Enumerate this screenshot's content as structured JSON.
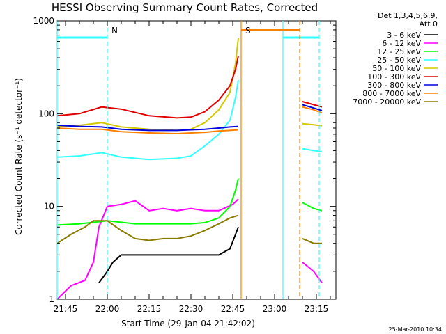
{
  "chart_data": {
    "type": "line",
    "title": "HESSI Observing Summary Count Rates, Corrected",
    "xlabel": "Start Time (29-Jan-04 21:42:02)",
    "ylabel": "Corrected Count Rate (s⁻¹ detector⁻¹)",
    "y_scale": "log",
    "ylim": [
      1,
      1000
    ],
    "x_time_range": [
      "21:42",
      "23:22"
    ],
    "x_ticks": [
      "21:45",
      "22:00",
      "22:15",
      "22:30",
      "22:45",
      "23:00",
      "23:15"
    ],
    "y_ticks": [
      "1",
      "10",
      "100",
      "1000"
    ],
    "grid": false,
    "legend_position": "right",
    "legend_header": [
      "Det 1,3,4,5,6,9,",
      "Att 0"
    ],
    "timestamp": "25-Mar-2010 10:34",
    "colors": {
      "3 - 6 keV": "#000000",
      "6 - 12 keV": "#ff00ff",
      "12 - 25 keV": "#00ff00",
      "25 - 50 keV": "#33ffff",
      "50 - 100 keV": "#d4c800",
      "100 - 300 keV": "#e00000",
      "300 - 800 keV": "#0000e0",
      "800 - 7000 keV": "#ff8000",
      "7000 - 20000 keV": "#8b7a00",
      "night_bar": "#33ffff",
      "saa_bar": "#ff8000"
    },
    "annotations": [
      {
        "label": "N",
        "color": "#33ffff",
        "time": "22:00"
      },
      {
        "label": "S",
        "color": "#ff8000",
        "time": "22:48"
      }
    ],
    "spacecraft_flags": {
      "night": [
        [
          "21:42",
          "22:00"
        ],
        [
          "23:03",
          "23:16"
        ]
      ],
      "saa": [
        [
          "22:48",
          "23:09"
        ]
      ],
      "night_level": 660,
      "saa_level": 800
    },
    "series": [
      {
        "name": "3 - 6 keV",
        "points": [
          [
            "21:57",
            1.5
          ],
          [
            "22:00",
            2.0
          ],
          [
            "22:02",
            2.5
          ],
          [
            "22:05",
            3.0
          ],
          [
            "22:10",
            3.0
          ],
          [
            "22:15",
            3.0
          ],
          [
            "22:20",
            3.0
          ],
          [
            "22:25",
            3.0
          ],
          [
            "22:30",
            3.0
          ],
          [
            "22:35",
            3.0
          ],
          [
            "22:40",
            3.0
          ],
          [
            "22:44",
            3.5
          ],
          [
            "22:46",
            5.0
          ],
          [
            "22:47",
            6.0
          ]
        ]
      },
      {
        "name": "6 - 12 keV",
        "points": [
          [
            "21:42",
            1.0
          ],
          [
            "21:47",
            1.4
          ],
          [
            "21:52",
            1.6
          ],
          [
            "21:55",
            2.5
          ],
          [
            "21:57",
            6.0
          ],
          [
            "22:00",
            10.0
          ],
          [
            "22:05",
            10.5
          ],
          [
            "22:10",
            11.5
          ],
          [
            "22:15",
            9.0
          ],
          [
            "22:20",
            9.5
          ],
          [
            "22:25",
            9.0
          ],
          [
            "22:30",
            9.5
          ],
          [
            "22:35",
            9.0
          ],
          [
            "22:40",
            9.0
          ],
          [
            "22:45",
            10.5
          ],
          [
            "22:47",
            12.0
          ]
        ]
      },
      {
        "name": "12 - 25 keV",
        "points": [
          [
            "21:42",
            6.3
          ],
          [
            "21:50",
            6.5
          ],
          [
            "22:00",
            7.0
          ],
          [
            "22:10",
            6.5
          ],
          [
            "22:20",
            6.5
          ],
          [
            "22:30",
            6.5
          ],
          [
            "22:35",
            6.7
          ],
          [
            "22:40",
            7.5
          ],
          [
            "22:44",
            10.0
          ],
          [
            "22:46",
            15.0
          ],
          [
            "22:47",
            20.0
          ]
        ]
      },
      {
        "name": "25 - 50 keV",
        "points": [
          [
            "21:42",
            34
          ],
          [
            "21:50",
            35
          ],
          [
            "21:58",
            38
          ],
          [
            "22:05",
            34
          ],
          [
            "22:15",
            32
          ],
          [
            "22:25",
            33
          ],
          [
            "22:30",
            35
          ],
          [
            "22:35",
            45
          ],
          [
            "22:40",
            60
          ],
          [
            "22:44",
            85
          ],
          [
            "22:46",
            150
          ],
          [
            "22:47",
            230
          ]
        ]
      },
      {
        "name": "50 - 100 keV",
        "points": [
          [
            "21:42",
            73
          ],
          [
            "21:50",
            75
          ],
          [
            "21:58",
            80
          ],
          [
            "22:05",
            72
          ],
          [
            "22:15",
            68
          ],
          [
            "22:25",
            66
          ],
          [
            "22:30",
            68
          ],
          [
            "22:35",
            80
          ],
          [
            "22:40",
            110
          ],
          [
            "22:44",
            170
          ],
          [
            "22:46",
            350
          ],
          [
            "22:47",
            650
          ]
        ]
      },
      {
        "name": "100 - 300 keV",
        "points": [
          [
            "21:42",
            95
          ],
          [
            "21:50",
            100
          ],
          [
            "21:58",
            118
          ],
          [
            "22:05",
            112
          ],
          [
            "22:15",
            95
          ],
          [
            "22:25",
            90
          ],
          [
            "22:30",
            92
          ],
          [
            "22:35",
            105
          ],
          [
            "22:40",
            140
          ],
          [
            "22:44",
            200
          ],
          [
            "22:46",
            300
          ],
          [
            "22:47",
            420
          ]
        ]
      },
      {
        "name": "300 - 800 keV",
        "points": [
          [
            "21:42",
            75
          ],
          [
            "21:50",
            73
          ],
          [
            "21:58",
            72
          ],
          [
            "22:05",
            68
          ],
          [
            "22:15",
            66
          ],
          [
            "22:25",
            66
          ],
          [
            "22:30",
            67
          ],
          [
            "22:35",
            68
          ],
          [
            "22:40",
            70
          ],
          [
            "22:44",
            72
          ],
          [
            "22:47",
            73
          ]
        ]
      },
      {
        "name": "800 - 7000 keV",
        "points": [
          [
            "21:42",
            70
          ],
          [
            "21:50",
            68
          ],
          [
            "21:58",
            68
          ],
          [
            "22:05",
            64
          ],
          [
            "22:15",
            62
          ],
          [
            "22:25",
            61
          ],
          [
            "22:30",
            62
          ],
          [
            "22:35",
            63
          ],
          [
            "22:40",
            65
          ],
          [
            "22:44",
            66
          ],
          [
            "22:47",
            67
          ]
        ]
      },
      {
        "name": "7000 - 20000 keV",
        "points": [
          [
            "21:42",
            4.0
          ],
          [
            "21:47",
            5.0
          ],
          [
            "21:52",
            6.0
          ],
          [
            "21:55",
            7.0
          ],
          [
            "22:00",
            7.0
          ],
          [
            "22:05",
            5.5
          ],
          [
            "22:10",
            4.5
          ],
          [
            "22:15",
            4.3
          ],
          [
            "22:20",
            4.5
          ],
          [
            "22:25",
            4.5
          ],
          [
            "22:30",
            4.8
          ],
          [
            "22:35",
            5.5
          ],
          [
            "22:40",
            6.5
          ],
          [
            "22:44",
            7.5
          ],
          [
            "22:47",
            8.0
          ]
        ]
      }
    ],
    "post_saa_points": [
      {
        "series": "100 - 300 keV",
        "points": [
          [
            "23:10",
            135
          ],
          [
            "23:14",
            125
          ],
          [
            "23:17",
            118
          ]
        ]
      },
      {
        "series": "800 - 7000 keV",
        "points": [
          [
            "23:10",
            118
          ],
          [
            "23:14",
            110
          ],
          [
            "23:17",
            102
          ]
        ]
      },
      {
        "series": "300 - 800 keV",
        "points": [
          [
            "23:10",
            125
          ],
          [
            "23:14",
            115
          ],
          [
            "23:17",
            108
          ]
        ]
      },
      {
        "series": "50 - 100 keV",
        "points": [
          [
            "23:10",
            78
          ],
          [
            "23:14",
            76
          ],
          [
            "23:17",
            74
          ]
        ]
      },
      {
        "series": "25 - 50 keV",
        "points": [
          [
            "23:10",
            42
          ],
          [
            "23:14",
            40
          ],
          [
            "23:17",
            39
          ]
        ]
      },
      {
        "series": "12 - 25 keV",
        "points": [
          [
            "23:10",
            11
          ],
          [
            "23:14",
            9.5
          ],
          [
            "23:17",
            9.0
          ]
        ]
      },
      {
        "series": "7000 - 20000 keV",
        "points": [
          [
            "23:10",
            4.5
          ],
          [
            "23:14",
            4.0
          ],
          [
            "23:17",
            4.0
          ]
        ]
      },
      {
        "series": "6 - 12 keV",
        "points": [
          [
            "23:10",
            2.5
          ],
          [
            "23:14",
            2.0
          ],
          [
            "23:17",
            1.5
          ]
        ]
      }
    ]
  }
}
